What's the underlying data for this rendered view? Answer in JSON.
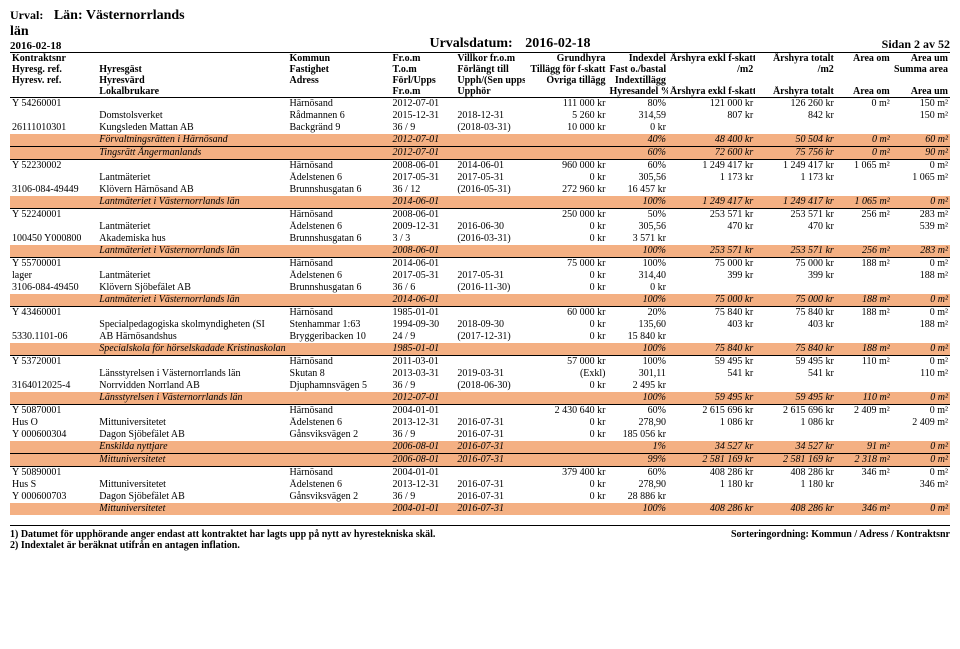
{
  "header": {
    "urval_label": "Urval:",
    "lan": "Län: Västernorrlands län",
    "print_date": "2016-02-18",
    "sel_label": "Urvalsdatum:",
    "sel_date": "2016-02-18",
    "page": "Sidan 2 av 52"
  },
  "col_headers": {
    "r1": [
      "Kontraktsnr",
      "",
      "Kommun",
      "Fr.o.m",
      "Villkor fr.o.m",
      "Grundhyra",
      "Indexdel",
      "Årshyra exkl f-skatt",
      "Årshyra totalt",
      "Area om",
      "Area um"
    ],
    "r2": [
      "Hyresg. ref.",
      "Hyresgäst",
      "Fastighet",
      "T.o.m",
      "Förlängt till",
      "Tillägg för f-skatt",
      "Fast o./bastal",
      "/m2",
      "/m2",
      "",
      "Summa area"
    ],
    "r3": [
      "Hyresv. ref.",
      "Hyresvärd",
      "Adress",
      "Förl/Upps",
      "Upph/(Sen upps)",
      "Övriga tillägg",
      "Indextillägg",
      "",
      "",
      "",
      ""
    ],
    "r4": [
      "",
      "Lokalbrukare",
      "",
      "Fr.o.m",
      "Upphör",
      "",
      "Hyresandel %",
      "Årshyra exkl f-skatt",
      "Årshyra totalt",
      "Area om",
      "Area um"
    ]
  },
  "groups": [
    {
      "rows": [
        [
          "Y 54260001",
          "",
          "Härnösand",
          "2012-07-01",
          "",
          "111 000 kr",
          "80%",
          "121 000 kr",
          "126 260 kr",
          "0 m²",
          "150 m²"
        ],
        [
          "",
          "Domstolsverket",
          "Rådmannen 6",
          "2015-12-31",
          "2018-12-31",
          "5 260 kr",
          "314,59",
          "807 kr",
          "842 kr",
          "",
          "150 m²"
        ],
        [
          "26111010301",
          "Kungsleden Mattan AB",
          "Backgränd 9",
          "36 / 9",
          "(2018-03-31)",
          "10 000 kr",
          "0 kr",
          "",
          "",
          "",
          ""
        ]
      ],
      "brands": [
        [
          "",
          "Förvaltningsrätten i Härnösand",
          "",
          "2012-07-01",
          "",
          "",
          "40%",
          "48 400 kr",
          "50 504 kr",
          "0 m²",
          "60 m²"
        ],
        [
          "",
          "Tingsrätt Ångermanlands",
          "",
          "2012-07-01",
          "",
          "",
          "60%",
          "72 600 kr",
          "75 756 kr",
          "0 m²",
          "90 m²"
        ]
      ]
    },
    {
      "rows": [
        [
          "Y 52230002",
          "",
          "Härnösand",
          "2008-06-01",
          "2014-06-01",
          "960 000 kr",
          "60%",
          "1 249 417 kr",
          "1 249 417 kr",
          "1 065 m²",
          "0 m²"
        ],
        [
          "",
          "Lantmäteriet",
          "Ädelstenen 6",
          "2017-05-31",
          "2017-05-31",
          "0 kr",
          "305,56",
          "1 173 kr",
          "1 173 kr",
          "",
          "1 065 m²"
        ],
        [
          "3106-084-49449",
          "Klövern Härnösand AB",
          "Brunnshusgatan 6",
          "36 / 12",
          "(2016-05-31)",
          "272 960 kr",
          "16 457 kr",
          "",
          "",
          "",
          ""
        ]
      ],
      "brands": [
        [
          "",
          "Lantmäteriet i Västernorrlands län",
          "",
          "2014-06-01",
          "",
          "",
          "100%",
          "1 249 417 kr",
          "1 249 417 kr",
          "1 065 m²",
          "0 m²"
        ]
      ]
    },
    {
      "rows": [
        [
          "Y 52240001",
          "",
          "Härnösand",
          "2008-06-01",
          "",
          "250 000 kr",
          "50%",
          "253 571 kr",
          "253 571 kr",
          "256 m²",
          "283 m²"
        ],
        [
          "",
          "Lantmäteriet",
          "Ädelstenen 6",
          "2009-12-31",
          "2016-06-30",
          "0 kr",
          "305,56",
          "470 kr",
          "470 kr",
          "",
          "539 m²"
        ],
        [
          "100450 Y000800",
          "Akademiska hus",
          "Brunnshusgatan 6",
          "3 / 3",
          "(2016-03-31)",
          "0 kr",
          "3 571 kr",
          "",
          "",
          "",
          ""
        ]
      ],
      "brands": [
        [
          "",
          "Lantmäteriet i Västernorrlands län",
          "",
          "2008-06-01",
          "",
          "",
          "100%",
          "253 571 kr",
          "253 571 kr",
          "256 m²",
          "283 m²"
        ]
      ]
    },
    {
      "rows": [
        [
          "Y 55700001",
          "",
          "Härnösand",
          "2014-06-01",
          "",
          "75 000 kr",
          "100%",
          "75 000 kr",
          "75 000 kr",
          "188 m²",
          "0 m²"
        ],
        [
          "lager",
          "Lantmäteriet",
          "Ädelstenen 6",
          "2017-05-31",
          "2017-05-31",
          "0 kr",
          "314,40",
          "399 kr",
          "399 kr",
          "",
          "188 m²"
        ],
        [
          "3106-084-49450",
          "Klövern Sjöbefälet AB",
          "Brunnshusgatan 6",
          "36 / 6",
          "(2016-11-30)",
          "0 kr",
          "0 kr",
          "",
          "",
          "",
          ""
        ]
      ],
      "brands": [
        [
          "",
          "Lantmäteriet i Västernorrlands län",
          "",
          "2014-06-01",
          "",
          "",
          "100%",
          "75 000 kr",
          "75 000 kr",
          "188 m²",
          "0 m²"
        ]
      ]
    },
    {
      "rows": [
        [
          "Y 43460001",
          "",
          "Härnösand",
          "1985-01-01",
          "",
          "60 000 kr",
          "20%",
          "75 840 kr",
          "75 840 kr",
          "188 m²",
          "0 m²"
        ],
        [
          "",
          "Specialpedagogiska skolmyndigheten (SI",
          "Stenhammar 1:63",
          "1994-09-30",
          "2018-09-30",
          "0 kr",
          "135,60",
          "403 kr",
          "403 kr",
          "",
          "188 m²"
        ],
        [
          "5330.1101-06",
          "AB Härnösandshus",
          "Bryggeribacken 10",
          "24 / 9",
          "(2017-12-31)",
          "0 kr",
          "15 840 kr",
          "",
          "",
          "",
          ""
        ]
      ],
      "brands": [
        [
          "",
          "Specialskola för hörselskadade Kristinaskolan",
          "",
          "1985-01-01",
          "",
          "",
          "100%",
          "75 840 kr",
          "75 840 kr",
          "188 m²",
          "0 m²"
        ]
      ]
    },
    {
      "rows": [
        [
          "Y 53720001",
          "",
          "Härnösand",
          "2011-03-01",
          "",
          "57 000 kr",
          "100%",
          "59 495 kr",
          "59 495 kr",
          "110 m²",
          "0 m²"
        ],
        [
          "",
          "Länsstyrelsen i Västernorrlands län",
          "Skutan 8",
          "2013-03-31",
          "2019-03-31",
          "(Exkl)",
          "301,11",
          "541 kr",
          "541 kr",
          "",
          "110 m²"
        ],
        [
          "3164012025-4",
          "Norrvidden Norrland AB",
          "Djuphamnsvägen 5",
          "36 / 9",
          "(2018-06-30)",
          "0 kr",
          "2 495 kr",
          "",
          "",
          "",
          ""
        ]
      ],
      "brands": [
        [
          "",
          "Länsstyrelsen i Västernorrlands län",
          "",
          "2012-07-01",
          "",
          "",
          "100%",
          "59 495 kr",
          "59 495 kr",
          "110 m²",
          "0 m²"
        ]
      ]
    },
    {
      "rows": [
        [
          "Y 50870001",
          "",
          "Härnösand",
          "2004-01-01",
          "",
          "2 430 640 kr",
          "60%",
          "2 615 696 kr",
          "2 615 696 kr",
          "2 409 m²",
          "0 m²"
        ],
        [
          "Hus O",
          "Mittuniversitetet",
          "Ädelstenen 6",
          "2013-12-31",
          "2016-07-31",
          "0 kr",
          "278,90",
          "1 086 kr",
          "1 086 kr",
          "",
          "2 409 m²"
        ],
        [
          "Y 000600304",
          "Dagon Sjöbefälet AB",
          "Gånsviksvägen 2",
          "36 / 9",
          "2016-07-31",
          "0 kr",
          "185 056 kr",
          "",
          "",
          "",
          ""
        ]
      ],
      "brands": [
        [
          "",
          "Enskilda nyttjare",
          "",
          "2006-08-01",
          "2016-07-31",
          "",
          "1%",
          "34 527 kr",
          "34 527 kr",
          "91 m²",
          "0 m²"
        ],
        [
          "",
          "Mittuniversitetet",
          "",
          "2006-08-01",
          "2016-07-31",
          "",
          "99%",
          "2 581 169 kr",
          "2 581 169 kr",
          "2 318 m²",
          "0 m²"
        ]
      ]
    },
    {
      "rows": [
        [
          "Y 50890001",
          "",
          "Härnösand",
          "2004-01-01",
          "",
          "379 400 kr",
          "60%",
          "408 286 kr",
          "408 286 kr",
          "346 m²",
          "0 m²"
        ],
        [
          "Hus S",
          "Mittuniversitetet",
          "Ädelstenen 6",
          "2013-12-31",
          "2016-07-31",
          "0 kr",
          "278,90",
          "1 180 kr",
          "1 180 kr",
          "",
          "346 m²"
        ],
        [
          "Y 000600703",
          "Dagon Sjöbefälet AB",
          "Gånsviksvägen 2",
          "36 / 9",
          "2016-07-31",
          "0 kr",
          "28 886 kr",
          "",
          "",
          "",
          ""
        ]
      ],
      "brands": [
        [
          "",
          "Mittuniversitetet",
          "",
          "2004-01-01",
          "2016-07-31",
          "",
          "100%",
          "408 286 kr",
          "408 286 kr",
          "346 m²",
          "0 m²"
        ]
      ]
    }
  ],
  "footer": {
    "note1": "1) Datumet för upphörande anger endast att kontraktet har lagts upp på nytt av hyrestekniska skäl.",
    "note2": "2) Indextalet är beräknat utifrån en antagen inflation.",
    "sort": "Sorteringordning: Kommun / Adress / Kontraktsnr"
  }
}
